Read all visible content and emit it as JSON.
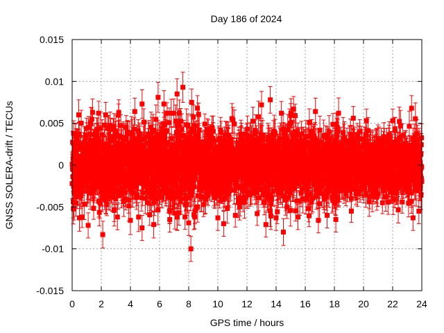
{
  "chart_data": {
    "type": "scatter",
    "title": "Day 186 of 2024",
    "xlabel": "GPS time / hours",
    "ylabel": "GNSS SOLERA-drift / TECUs",
    "xlim": [
      0,
      24
    ],
    "ylim": [
      -0.015,
      0.015
    ],
    "xticks": [
      0,
      2,
      4,
      6,
      8,
      10,
      12,
      14,
      16,
      18,
      20,
      22,
      24
    ],
    "yticks": [
      -0.015,
      -0.01,
      -0.005,
      0,
      0.005,
      0.01,
      0.015
    ],
    "xtick_labels": [
      "0",
      "2",
      "4",
      "6",
      "8",
      "10",
      "12",
      "14",
      "16",
      "18",
      "20",
      "22",
      "24"
    ],
    "ytick_labels": [
      "-0.015",
      "-0.01",
      "-0.005",
      "0",
      "0.005",
      "0.01",
      "0.015"
    ],
    "grid": true,
    "marker_color": "#ff0000",
    "series": [
      {
        "points": [
          {
            "x": 0.1,
            "y": 0.0038,
            "err": 0.0015
          },
          {
            "x": 0.45,
            "y": 0.006,
            "err": 0.0018
          },
          {
            "x": 0.5,
            "y": -0.0063,
            "err": 0.0016
          },
          {
            "x": 1.1,
            "y": -0.0072,
            "err": 0.0015
          },
          {
            "x": 1.4,
            "y": 0.0063,
            "err": 0.0016
          },
          {
            "x": 2.1,
            "y": -0.0083,
            "err": 0.0016
          },
          {
            "x": 2.3,
            "y": 0.006,
            "err": 0.0015
          },
          {
            "x": 3.2,
            "y": 0.0063,
            "err": 0.0015
          },
          {
            "x": 4.0,
            "y": -0.0066,
            "err": 0.0017
          },
          {
            "x": 4.3,
            "y": 0.0064,
            "err": 0.0016
          },
          {
            "x": 4.8,
            "y": 0.0073,
            "err": 0.0017
          },
          {
            "x": 4.8,
            "y": -0.0075,
            "err": 0.0015
          },
          {
            "x": 5.6,
            "y": -0.0071,
            "err": 0.0016
          },
          {
            "x": 5.9,
            "y": 0.0081,
            "err": 0.0018
          },
          {
            "x": 6.3,
            "y": 0.0073,
            "err": 0.0016
          },
          {
            "x": 6.7,
            "y": -0.0065,
            "err": 0.0015
          },
          {
            "x": 7.2,
            "y": 0.0085,
            "err": 0.0018
          },
          {
            "x": 7.6,
            "y": 0.0093,
            "err": 0.0018
          },
          {
            "x": 8.0,
            "y": -0.0069,
            "err": 0.0015
          },
          {
            "x": 8.15,
            "y": -0.01,
            "err": 0.0015
          },
          {
            "x": 8.2,
            "y": 0.0075,
            "err": 0.0016
          },
          {
            "x": 8.6,
            "y": 0.0068,
            "err": 0.0015
          },
          {
            "x": 10.0,
            "y": -0.0063,
            "err": 0.0015
          },
          {
            "x": 10.4,
            "y": -0.007,
            "err": 0.0015
          },
          {
            "x": 11.2,
            "y": -0.006,
            "err": 0.0014
          },
          {
            "x": 12.7,
            "y": -0.0058,
            "err": 0.0014
          },
          {
            "x": 13.0,
            "y": 0.0072,
            "err": 0.0016
          },
          {
            "x": 13.3,
            "y": -0.0071,
            "err": 0.0015
          },
          {
            "x": 13.6,
            "y": 0.0078,
            "err": 0.0016
          },
          {
            "x": 14.0,
            "y": -0.0063,
            "err": 0.0015
          },
          {
            "x": 14.5,
            "y": -0.008,
            "err": 0.0016
          },
          {
            "x": 15.2,
            "y": 0.0067,
            "err": 0.0015
          },
          {
            "x": 15.5,
            "y": -0.0062,
            "err": 0.0015
          },
          {
            "x": 16.7,
            "y": 0.0064,
            "err": 0.0016
          },
          {
            "x": 16.9,
            "y": -0.0066,
            "err": 0.0015
          },
          {
            "x": 17.5,
            "y": -0.006,
            "err": 0.0015
          },
          {
            "x": 18.1,
            "y": -0.0065,
            "err": 0.0015
          },
          {
            "x": 19.3,
            "y": 0.0056,
            "err": 0.0014
          },
          {
            "x": 20.2,
            "y": 0.0053,
            "err": 0.0014
          },
          {
            "x": 21.3,
            "y": -0.0045,
            "err": 0.0013
          },
          {
            "x": 22.0,
            "y": 0.0053,
            "err": 0.0014
          },
          {
            "x": 23.3,
            "y": 0.0068,
            "err": 0.0015
          },
          {
            "x": 23.4,
            "y": -0.0063,
            "err": 0.0015
          },
          {
            "x": 23.8,
            "y": -0.0055,
            "err": 0.0015
          }
        ],
        "dense_band": {
          "x_range": [
            0,
            24
          ],
          "y_center": 0,
          "y_std_by_hour": [
            0.0025,
            0.0027,
            0.0026,
            0.0026,
            0.0027,
            0.0029,
            0.0029,
            0.003,
            0.003,
            0.0025,
            0.0024,
            0.0023,
            0.0024,
            0.0027,
            0.0027,
            0.0024,
            0.0024,
            0.0024,
            0.0024,
            0.0021,
            0.002,
            0.002,
            0.0022,
            0.0024,
            0.0024
          ],
          "error_bar": 0.0015,
          "point_count": 2880
        }
      }
    ]
  }
}
